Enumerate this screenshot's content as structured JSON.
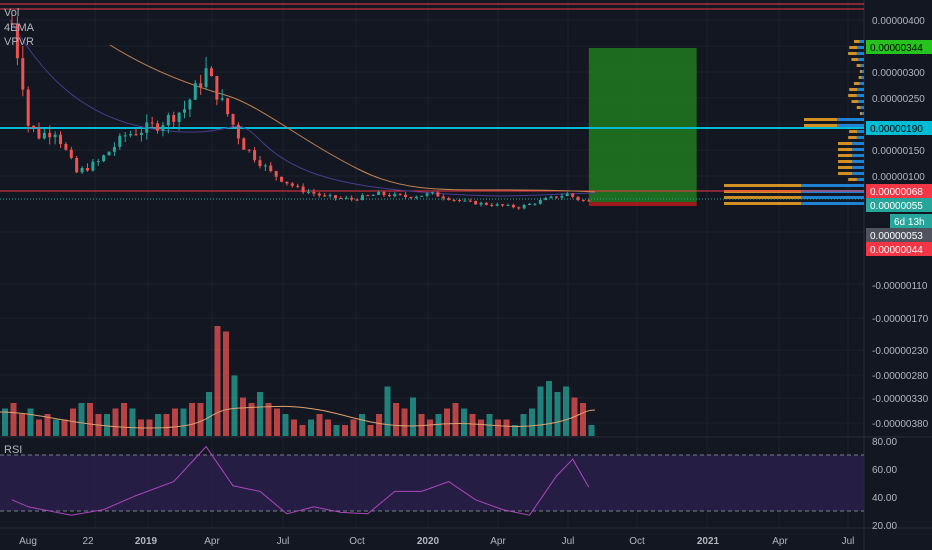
{
  "colors": {
    "background": "#131722",
    "up": "#26a69a",
    "down": "#ef5350",
    "red_line": "#f23645",
    "cyan_line": "#00bcd4",
    "profit_zone": "#1e7a1e",
    "loss_zone": "#b71c1c",
    "rsi_band": "#2a1e4a",
    "rsi_line": "#ab47bc",
    "ema_fast": "#4a3a8c",
    "ema_slow": "#c28450",
    "volume_ma": "#e0a070",
    "vpvr_up": "#2196f3",
    "vpvr_down": "#f5a623"
  },
  "legend": {
    "line1": "Vol",
    "line2": "4EMA",
    "line3": "VPVR"
  },
  "rsi_pane": {
    "label": "RSI",
    "ticks": [
      "80.00",
      "60.00",
      "40.00",
      "20.00"
    ]
  },
  "price_axis": {
    "ticks": [
      "0.00000400",
      "0.00000300",
      "0.00000250",
      "0.00000150",
      "0.00000100",
      "-0.00000110",
      "-0.00000170",
      "-0.00000230",
      "-0.00000280",
      "-0.00000330",
      "-0.00000380"
    ],
    "badges": [
      {
        "text": "0.00000344",
        "bg": "#26c21e",
        "fg": "#000000"
      },
      {
        "text": "0.00000190",
        "bg": "#00bcd4",
        "fg": "#000000"
      },
      {
        "text": "0.00000068",
        "bg": "#f23645",
        "fg": "#ffffff"
      },
      {
        "text": "0.00000055",
        "bg": "#26a69a",
        "fg": "#ffffff"
      },
      {
        "text": "6d 13h",
        "bg": "#26a69a",
        "fg": "#ffffff"
      },
      {
        "text": "0.00000053",
        "bg": "#50535e",
        "fg": "#ffffff"
      },
      {
        "text": "0.00000044",
        "bg": "#f23645",
        "fg": "#ffffff"
      }
    ]
  },
  "time_axis": {
    "labels": [
      "Aug",
      "22",
      "2019",
      "Apr",
      "Jul",
      "Oct",
      "2020",
      "Apr",
      "Jul",
      "Oct",
      "2021",
      "Apr",
      "Jul"
    ]
  },
  "chart_data": {
    "type": "candlestick",
    "price_pane": {
      "series": [
        {
          "x": "2018-07-22",
          "y": 3.9
        },
        {
          "x": "2018-08-05",
          "y": 2.8
        },
        {
          "x": "2018-08-12",
          "y": 2.0
        },
        {
          "x": "2018-08-26",
          "y": 1.8
        },
        {
          "x": "2018-09-16",
          "y": 1.9
        },
        {
          "x": "2018-10-14",
          "y": 1.1
        },
        {
          "x": "2018-11-11",
          "y": 1.3
        },
        {
          "x": "2018-12-16",
          "y": 1.8
        },
        {
          "x": "2019-01-27",
          "y": 2.0
        },
        {
          "x": "2019-03-03",
          "y": 2.3
        },
        {
          "x": "2019-03-31",
          "y": 3.0
        },
        {
          "x": "2019-04-21",
          "y": 2.4
        },
        {
          "x": "2019-05-19",
          "y": 1.6
        },
        {
          "x": "2019-06-23",
          "y": 1.1
        },
        {
          "x": "2019-07-28",
          "y": 0.8
        },
        {
          "x": "2019-09-01",
          "y": 0.65
        },
        {
          "x": "2019-10-06",
          "y": 0.6
        },
        {
          "x": "2019-11-10",
          "y": 0.7
        },
        {
          "x": "2019-12-15",
          "y": 0.65
        },
        {
          "x": "2020-01-19",
          "y": 0.7
        },
        {
          "x": "2020-03-01",
          "y": 0.55
        },
        {
          "x": "2020-04-05",
          "y": 0.5
        },
        {
          "x": "2020-05-10",
          "y": 0.45
        },
        {
          "x": "2020-06-14",
          "y": 0.6
        },
        {
          "x": "2020-07-12",
          "y": 0.7
        },
        {
          "x": "2020-07-26",
          "y": 0.6
        },
        {
          "x": "2020-08-09",
          "y": 0.55
        }
      ],
      "levels": [
        {
          "name": "resistance",
          "y": 1.9
        },
        {
          "name": "support",
          "y": 0.68
        },
        {
          "name": "entry",
          "y": 0.55
        }
      ],
      "position": {
        "entry": 0.55,
        "target": 3.44,
        "stop": 0.44,
        "x_start": "2020-08-09",
        "x_end": "2020-12-27"
      },
      "volume_profile_rows": 28
    },
    "volume_pane": {
      "values_relative": [
        0.25,
        0.3,
        0.2,
        0.25,
        0.15,
        0.2,
        0.15,
        0.15,
        0.25,
        0.3,
        0.3,
        0.2,
        0.2,
        0.25,
        0.3,
        0.25,
        0.15,
        0.15,
        0.2,
        0.2,
        0.25,
        0.25,
        0.3,
        0.3,
        0.4,
        1.0,
        0.95,
        0.55,
        0.35,
        0.3,
        0.4,
        0.3,
        0.25,
        0.2,
        0.15,
        0.1,
        0.15,
        0.2,
        0.15,
        0.1,
        0.1,
        0.15,
        0.2,
        0.1,
        0.2,
        0.45,
        0.3,
        0.25,
        0.35,
        0.2,
        0.15,
        0.2,
        0.25,
        0.3,
        0.25,
        0.2,
        0.15,
        0.2,
        0.15,
        0.15,
        0.1,
        0.2,
        0.25,
        0.45,
        0.5,
        0.4,
        0.45,
        0.35,
        0.3,
        0.1
      ]
    },
    "rsi_pane": {
      "ylim": [
        20,
        80
      ],
      "upper_band": 70,
      "lower_band": 30,
      "x": [
        "2018-07-22",
        "2018-08-12",
        "2018-10-07",
        "2018-11-18",
        "2018-12-30",
        "2019-02-17",
        "2019-03-31",
        "2019-05-05",
        "2019-06-09",
        "2019-07-14",
        "2019-08-18",
        "2019-09-22",
        "2019-10-27",
        "2019-12-01",
        "2020-01-05",
        "2020-02-09",
        "2020-03-15",
        "2020-04-19",
        "2020-05-24",
        "2020-06-28",
        "2020-07-19",
        "2020-08-09"
      ],
      "values": [
        38,
        33,
        27,
        31,
        41,
        51,
        76,
        48,
        44,
        28,
        33,
        29,
        28,
        44,
        44,
        51,
        38,
        31,
        27,
        55,
        67,
        47
      ]
    }
  }
}
